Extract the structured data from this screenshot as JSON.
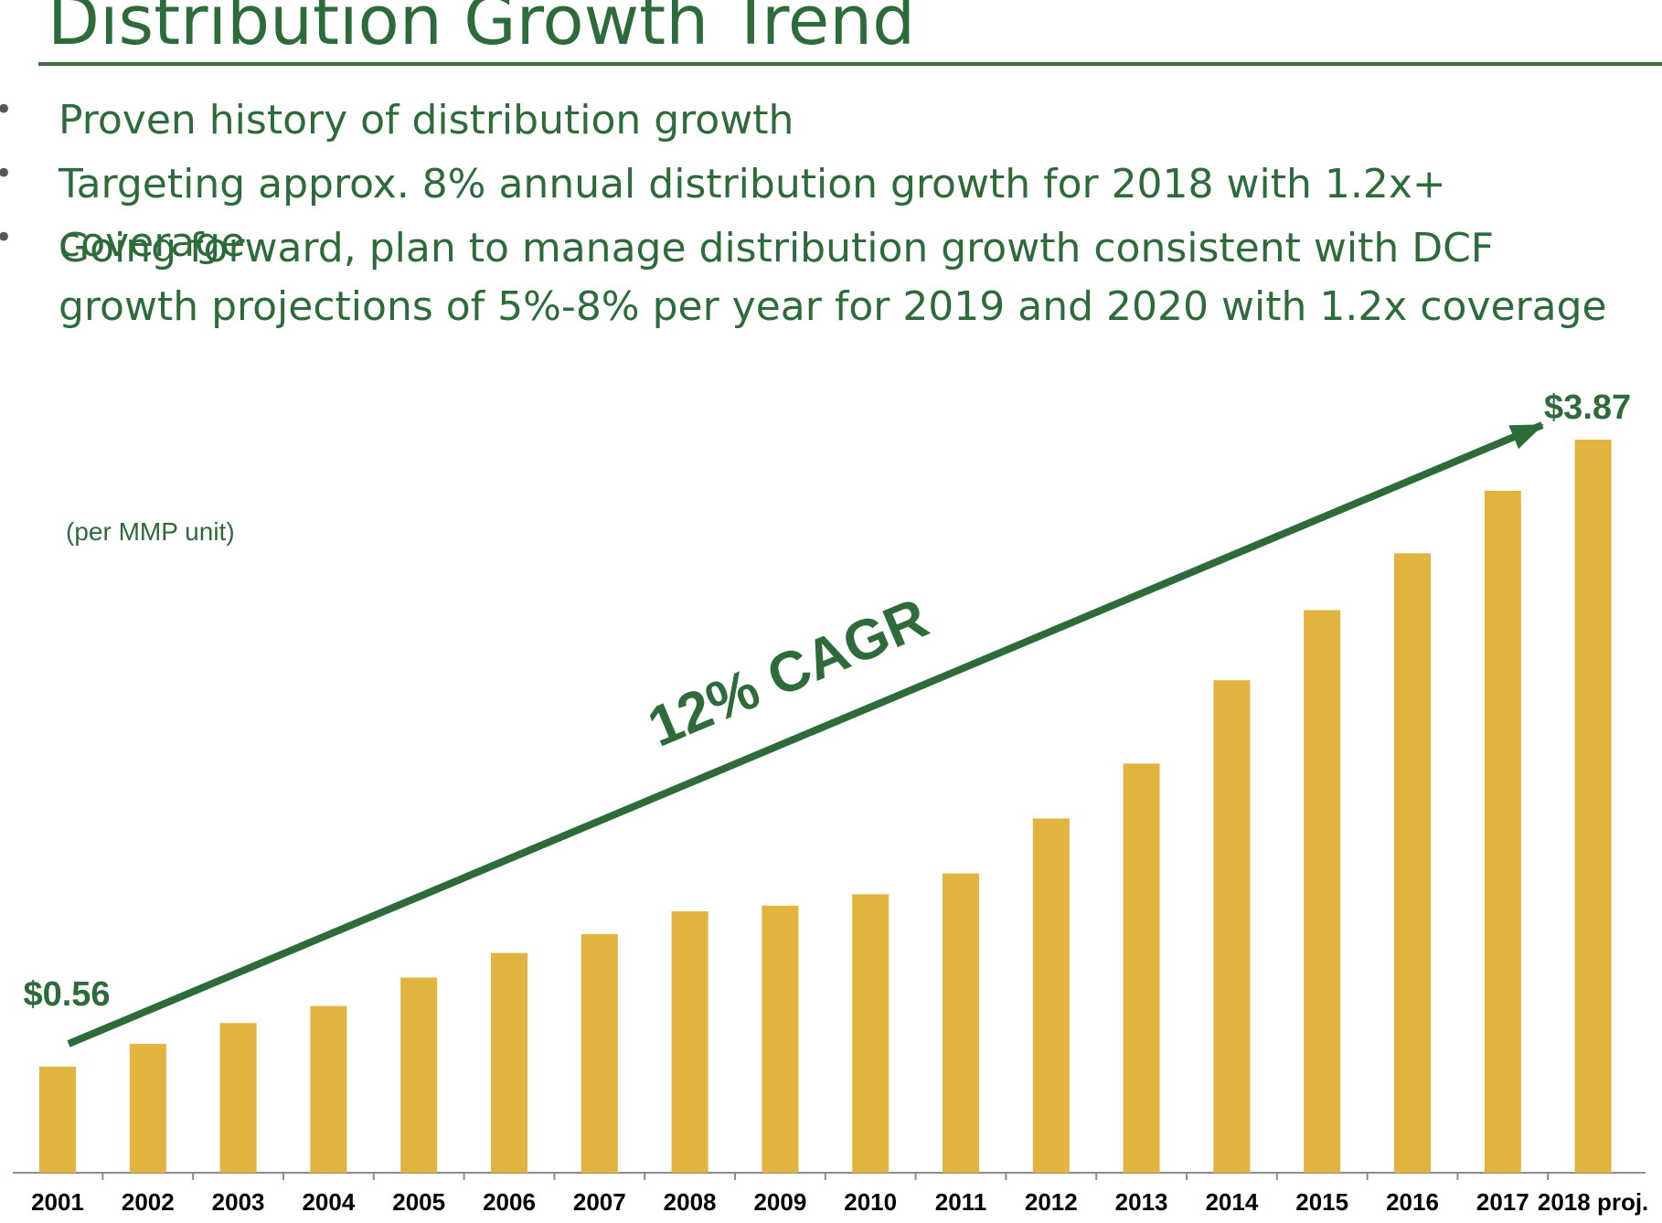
{
  "slide": {
    "title": "Distribution Growth Trend",
    "bullets": [
      "Proven history of distribution growth",
      "Targeting approx. 8% annual distribution growth for 2018 with 1.2x+ coverage",
      "Going forward, plan to manage distribution growth consistent with DCF growth projections of 5%-8% per year for 2019 and 2020 with 1.2x coverage"
    ],
    "bullet_symbol": "•"
  },
  "chart_data": {
    "type": "bar",
    "title": "",
    "xlabel": "",
    "ylabel": "",
    "unit_note": "(per MMP unit)",
    "categories": [
      "2001",
      "2002",
      "2003",
      "2004",
      "2005",
      "2006",
      "2007",
      "2008",
      "2009",
      "2010",
      "2011",
      "2012",
      "2013",
      "2014",
      "2015",
      "2016",
      "2017",
      "2018 proj."
    ],
    "values": [
      0.56,
      0.68,
      0.79,
      0.88,
      1.03,
      1.16,
      1.26,
      1.38,
      1.41,
      1.47,
      1.58,
      1.87,
      2.16,
      2.6,
      2.97,
      3.27,
      3.6,
      3.87
    ],
    "ylim": [
      0,
      3.87
    ],
    "grid": false,
    "legend": "none",
    "bar_color": "#e1b33f",
    "text_color": "#2e6b3a",
    "data_labels": [
      {
        "category": "2001",
        "text": "$0.56"
      },
      {
        "category": "2018 proj.",
        "text": "$3.87"
      }
    ],
    "annotations": [
      {
        "type": "trend-arrow",
        "label": "12% CAGR",
        "from": "2001",
        "to": "2018 proj.",
        "color": "#2e6b3a"
      }
    ]
  }
}
